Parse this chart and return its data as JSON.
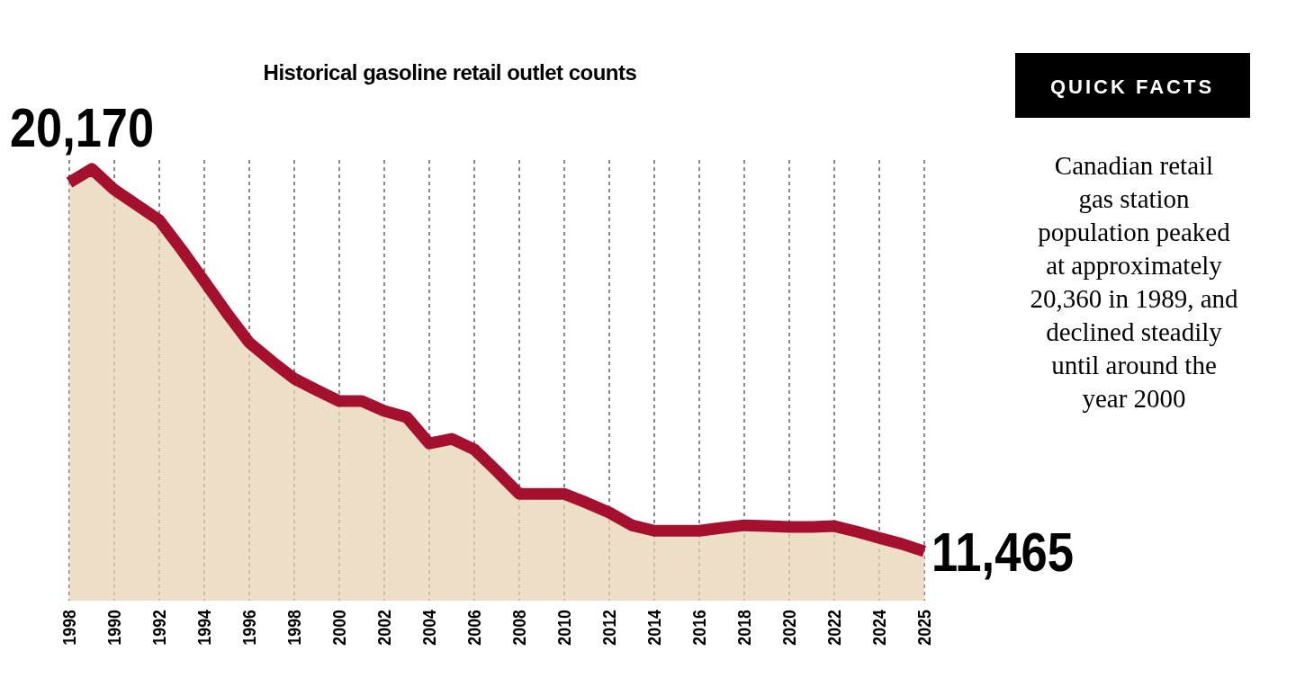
{
  "chart_data": {
    "type": "area",
    "title": "Historical gasoline retail outlet counts",
    "categories": [
      "1998",
      null,
      "1990",
      null,
      "1992",
      null,
      "1994",
      null,
      "1996",
      null,
      "1998",
      null,
      "2000",
      null,
      "2002",
      null,
      "2004",
      null,
      "2006",
      null,
      "2008",
      null,
      "2010",
      null,
      "2012",
      null,
      "2014",
      null,
      "2016",
      null,
      "2018",
      null,
      "2020",
      null,
      "2022",
      null,
      "2024",
      null,
      "2025"
    ],
    "series": [
      {
        "color": "#a6102f",
        "values": [
          20170,
          20490,
          20000,
          19640,
          19280,
          18580,
          17840,
          17090,
          16390,
          15950,
          15540,
          15270,
          15010,
          15010,
          14780,
          14630,
          14010,
          14120,
          13870,
          13360,
          12820,
          12820,
          12820,
          12610,
          12380,
          12080,
          11950,
          11950,
          11950,
          12020,
          12080,
          12060,
          12040,
          12040,
          12060,
          11930,
          11780,
          11640,
          11465
        ],
        "value_labels": [
          "20,170",
          null,
          null,
          null,
          null,
          null,
          null,
          null,
          null,
          null,
          null,
          null,
          null,
          null,
          null,
          null,
          null,
          null,
          null,
          null,
          null,
          null,
          null,
          null,
          null,
          null,
          null,
          null,
          null,
          null,
          null,
          null,
          null,
          null,
          null,
          null,
          null,
          null,
          "11,465"
        ]
      }
    ],
    "ylim": [
      10300,
      20700
    ],
    "tick_labels": "x",
    "grid": "x",
    "annotations": [
      "QUICK FACTS",
      "Canadian retail\ngas station\npopulation peaked\nat approximately\n20,360 in 1989, and\ndeclined steadily\nuntil around the\nyear 2000"
    ]
  }
}
